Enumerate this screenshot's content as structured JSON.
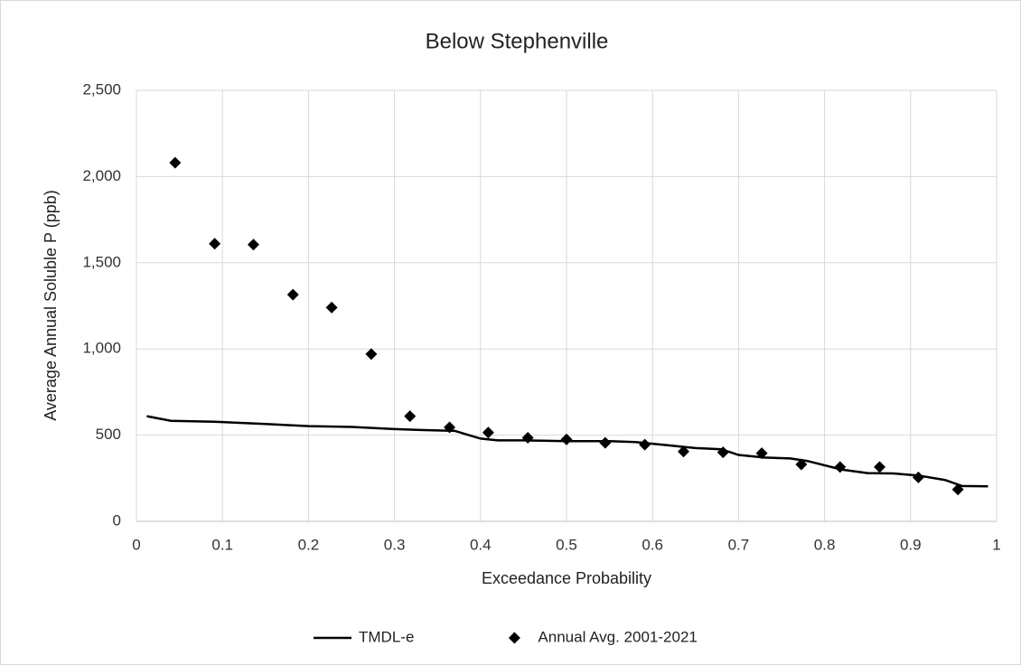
{
  "chart_data": {
    "type": "line",
    "title": "Below Stephenville",
    "x_label": "Exceedance Probability",
    "y_label": "Average Annual Soluble P (ppb)",
    "xlim": [
      0,
      1
    ],
    "xticks": [
      0,
      0.1,
      0.2,
      0.3,
      0.4,
      0.5,
      0.6,
      0.7,
      0.8,
      0.9,
      1
    ],
    "ylim": [
      0,
      2500
    ],
    "yticks": [
      0,
      500,
      {
        "value": 1000,
        "label": "1,000"
      },
      {
        "value": 1500,
        "label": "1,500"
      },
      {
        "value": 2000,
        "label": "2,000"
      },
      {
        "value": 2500,
        "label": "2,500"
      }
    ],
    "grid": true,
    "legend": "bottom",
    "series": [
      {
        "name": "TMDL-e",
        "type": "line",
        "color": "#000000",
        "x": [
          0.012,
          0.04,
          0.09,
          0.15,
          0.2,
          0.25,
          0.3,
          0.33,
          0.37,
          0.4,
          0.42,
          0.45,
          0.5,
          0.55,
          0.58,
          0.62,
          0.65,
          0.68,
          0.7,
          0.73,
          0.76,
          0.78,
          0.82,
          0.85,
          0.88,
          0.91,
          0.94,
          0.96,
          0.99
        ],
        "values": [
          610,
          583,
          578,
          565,
          552,
          548,
          535,
          530,
          525,
          480,
          470,
          470,
          465,
          465,
          460,
          440,
          425,
          418,
          385,
          370,
          365,
          350,
          300,
          280,
          278,
          265,
          240,
          205,
          203
        ]
      },
      {
        "name": "Annual Avg. 2001-2021",
        "type": "scatter",
        "color": "#000000",
        "x": [
          0.045,
          0.091,
          0.136,
          0.182,
          0.227,
          0.273,
          0.318,
          0.364,
          0.409,
          0.455,
          0.5,
          0.545,
          0.591,
          0.636,
          0.682,
          0.727,
          0.773,
          0.818,
          0.864,
          0.909,
          0.955
        ],
        "values": [
          2080,
          1610,
          1605,
          1315,
          1240,
          970,
          610,
          545,
          515,
          485,
          475,
          455,
          445,
          405,
          400,
          395,
          330,
          315,
          315,
          255,
          185
        ]
      }
    ]
  }
}
